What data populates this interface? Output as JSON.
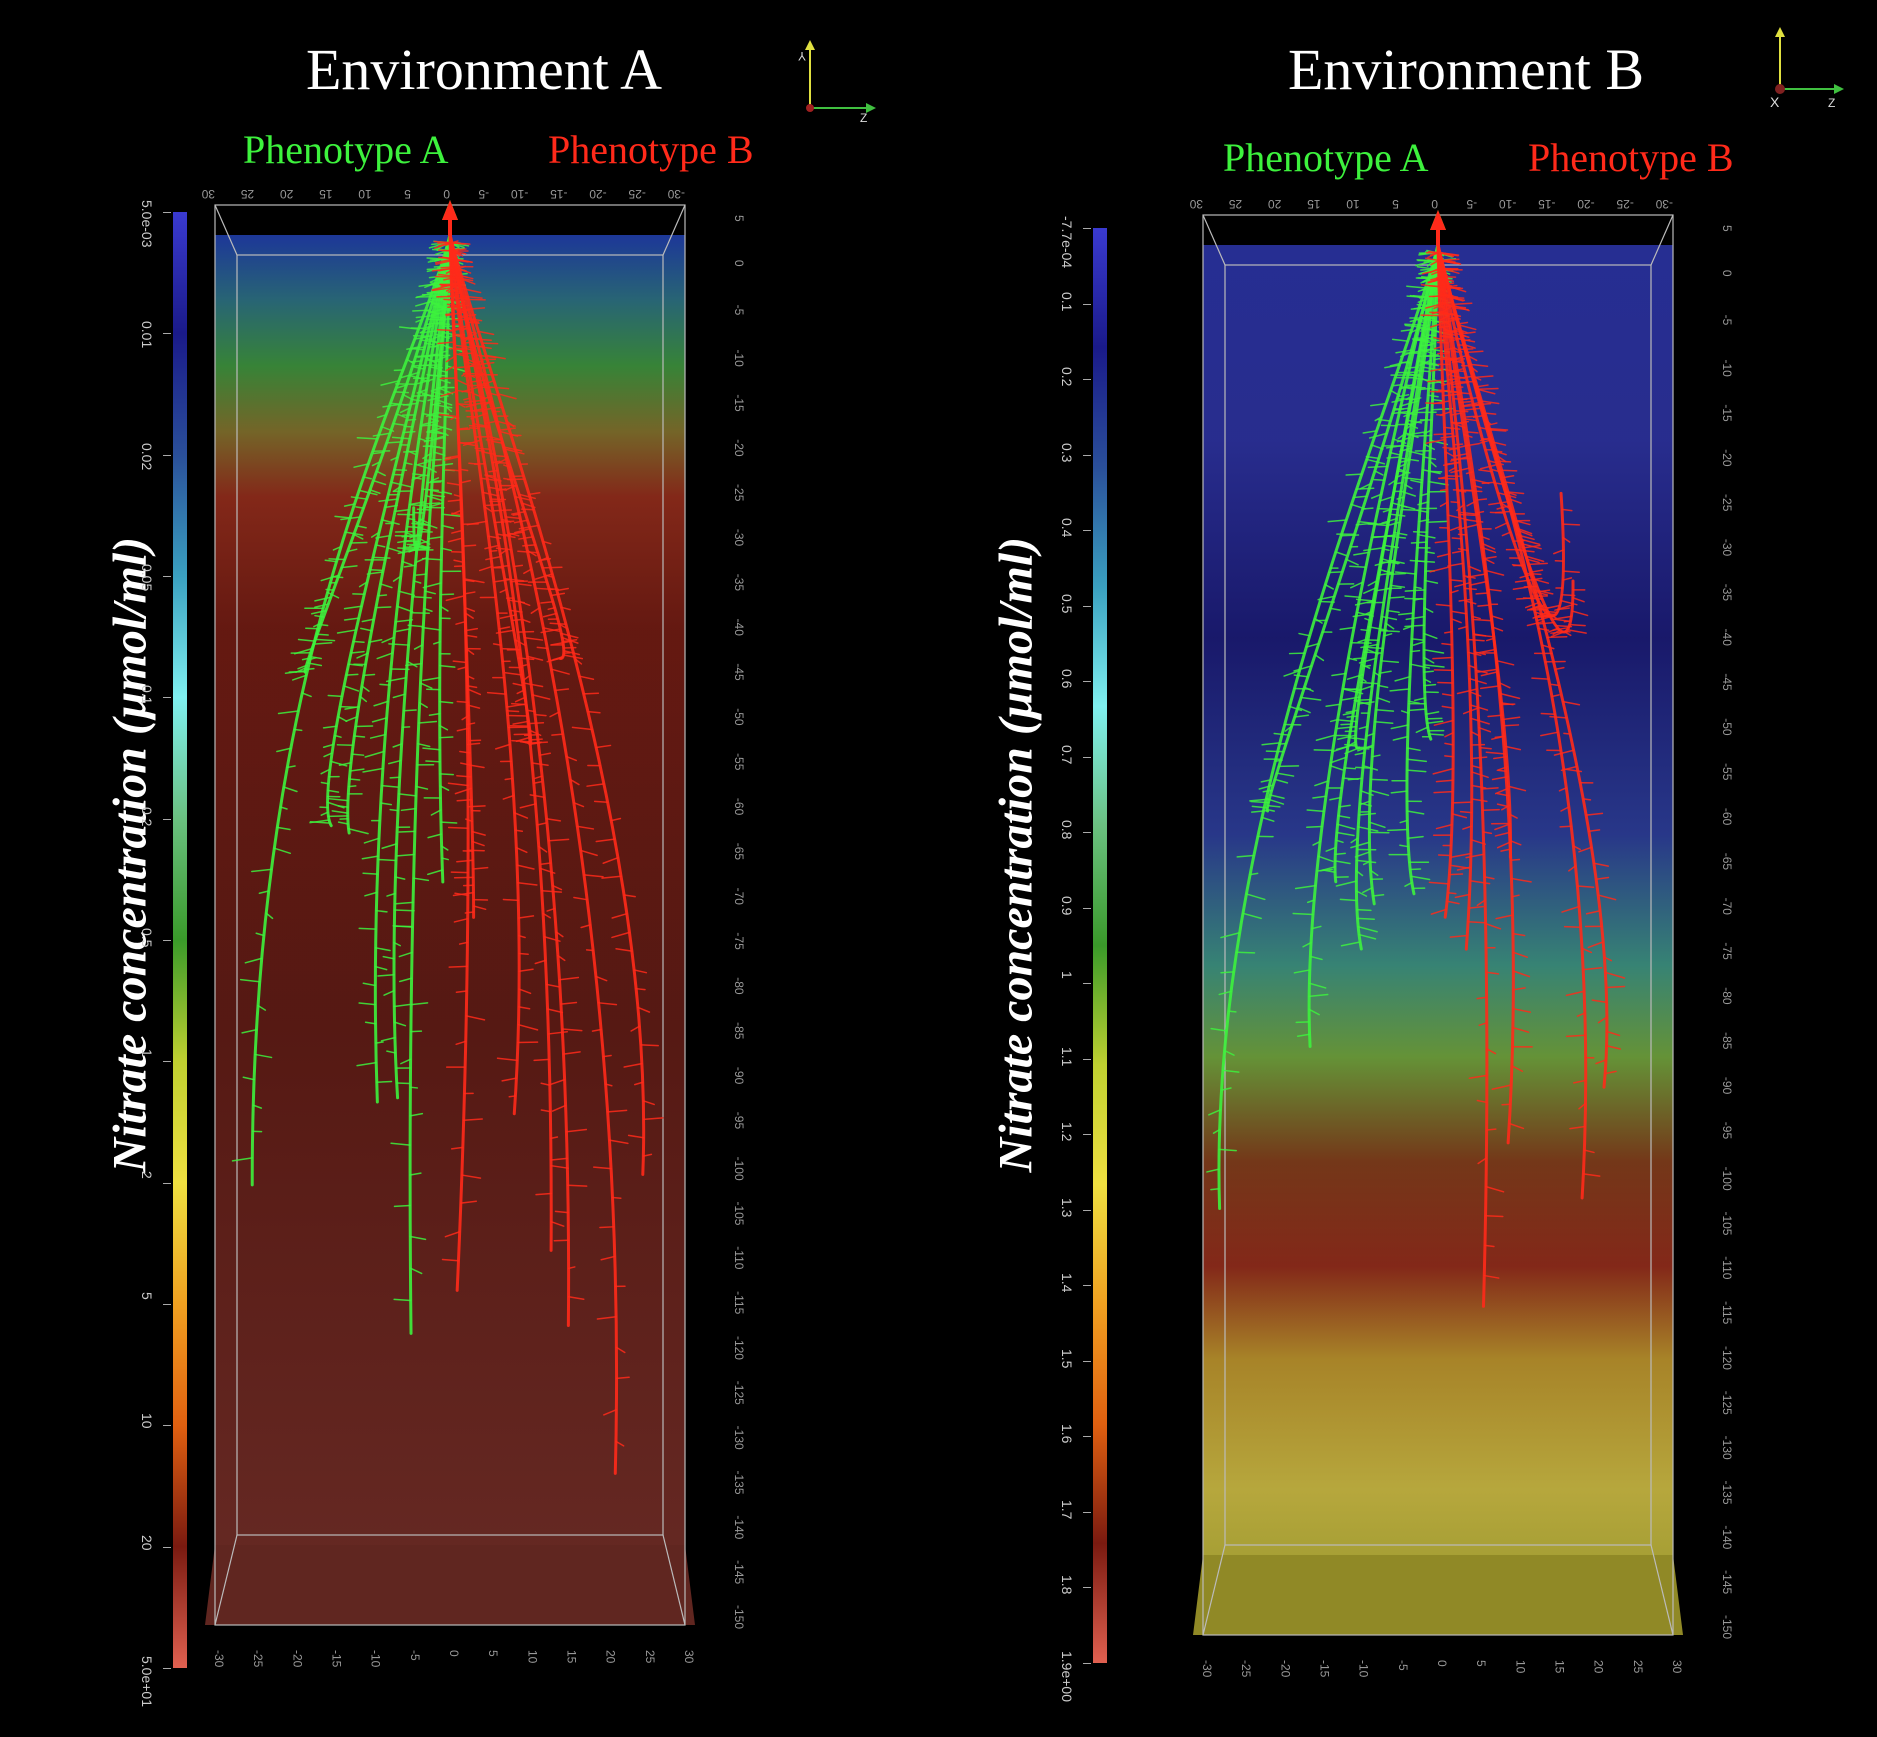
{
  "panels": [
    {
      "title": "Environment A",
      "phenotype_a": "Phenotype A",
      "phenotype_b": "Phenotype B",
      "colorbar_label": "Nitrate concentration (µmol/ml)",
      "colorbar_ticks": [
        "5.0e-03",
        "0.01",
        "0.02",
        "0.05",
        "0.1",
        "0.2",
        "0.5",
        "1",
        "2",
        "5",
        "10",
        "20",
        "5.0e+01"
      ],
      "colorbar_colors": [
        "#3a3ad0",
        "#1a1a8a",
        "#2a4f9a",
        "#3aa0c0",
        "#7ff0f0",
        "#6ac080",
        "#3a9a2a",
        "#bfd030",
        "#f0e040",
        "#f0a020",
        "#e06010",
        "#7a1a10",
        "#e06050"
      ],
      "side_ticks_right": [
        "5",
        "0",
        "-5",
        "-10",
        "-15",
        "-20",
        "-25",
        "-30",
        "-35",
        "-40",
        "-45",
        "-50",
        "-55",
        "-60",
        "-65",
        "-70",
        "-75",
        "-80",
        "-85",
        "-90",
        "-95",
        "-100",
        "-105",
        "-110",
        "-115",
        "-120",
        "-125",
        "-130",
        "-135",
        "-140",
        "-145",
        "-150"
      ],
      "top_ticks": [
        "30",
        "25",
        "20",
        "15",
        "10",
        "5",
        "0",
        "-5",
        "-10",
        "-15",
        "-20",
        "-25",
        "-30"
      ],
      "bottom_ticks": [
        "-30",
        "-25",
        "-20",
        "-15",
        "-10",
        "-5",
        "0",
        "5",
        "10",
        "15",
        "20",
        "25",
        "30"
      ]
    },
    {
      "title": "Environment B",
      "phenotype_a": "Phenotype A",
      "phenotype_b": "Phenotype B",
      "colorbar_label": "Nitrate concentration (µmol/ml)",
      "colorbar_ticks": [
        "-7.7e-04",
        "0.1",
        "0.2",
        "0.3",
        "0.4",
        "0.5",
        "0.6",
        "0.7",
        "0.8",
        "0.9",
        "1",
        "1.1",
        "1.2",
        "1.3",
        "1.4",
        "1.5",
        "1.6",
        "1.7",
        "1.8",
        "1.9e+00"
      ],
      "colorbar_colors": [
        "#3a3ad0",
        "#1a1a8a",
        "#2a4f9a",
        "#3aa0c0",
        "#7ff0f0",
        "#6ac080",
        "#3a9a2a",
        "#bfd030",
        "#f0e040",
        "#f0a020",
        "#e06010",
        "#7a1a10",
        "#e06050"
      ],
      "side_ticks_right": [
        "5",
        "0",
        "-5",
        "-10",
        "-15",
        "-20",
        "-25",
        "-30",
        "-35",
        "-40",
        "-45",
        "-50",
        "-55",
        "-60",
        "-65",
        "-70",
        "-75",
        "-80",
        "-85",
        "-90",
        "-95",
        "-100",
        "-105",
        "-110",
        "-115",
        "-120",
        "-125",
        "-130",
        "-135",
        "-140",
        "-145",
        "-150"
      ],
      "top_ticks": [
        "30",
        "25",
        "20",
        "15",
        "10",
        "5",
        "0",
        "-5",
        "-10",
        "-15",
        "-20",
        "-25",
        "-30"
      ],
      "bottom_ticks": [
        "-30",
        "-25",
        "-20",
        "-15",
        "-10",
        "-5",
        "0",
        "5",
        "10",
        "15",
        "20",
        "25",
        "30"
      ]
    }
  ],
  "colors": {
    "phenotype_a": "#3df23d",
    "phenotype_b": "#ff2a1a",
    "background": "#000000"
  }
}
